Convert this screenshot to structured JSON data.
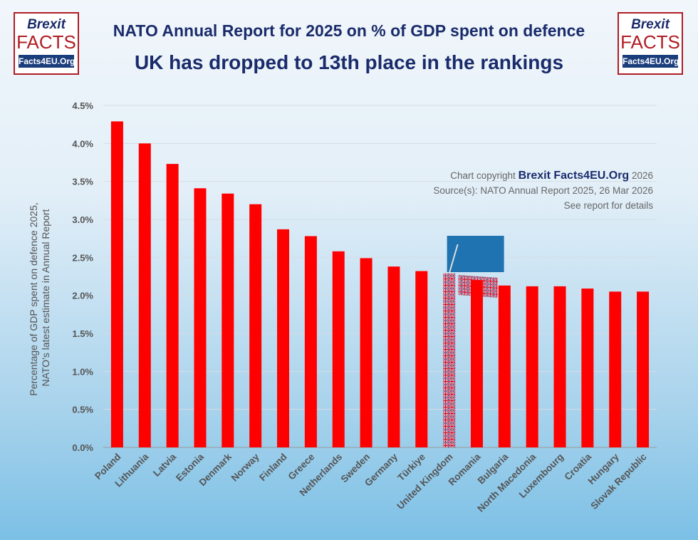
{
  "header": {
    "title": "NATO Annual Report for 2025 on % of GDP spent on defence",
    "subtitle": "UK has dropped to 13th place in the rankings"
  },
  "logo": {
    "line1": "Brexit",
    "line2": "FACTS",
    "line3": "Facts4EU.Org"
  },
  "credit": {
    "prefix": "Chart copyright",
    "brand": "Brexit Facts4EU.Org",
    "year": "2026",
    "source": "Source(s): NATO Annual Report 2025, 26 Mar 2026",
    "note": "See report for details"
  },
  "chart_data": {
    "type": "bar",
    "title": "NATO Annual Report for 2025 on % of GDP spent on defence",
    "ylabel": "Percentage of GDP spent on defence 2025, NATO's latest estimate in Annual Report",
    "ylabel_lines": [
      "Percentage of GDP spent on defence 2025,",
      "NATO's latest estimate in Annual Report"
    ],
    "ylim": [
      0,
      4.5
    ],
    "yticks": [
      "0.0%",
      "0.5%",
      "1.0%",
      "1.5%",
      "2.0%",
      "2.5%",
      "3.0%",
      "3.5%",
      "4.0%",
      "4.5%"
    ],
    "grid": true,
    "categories": [
      "Poland",
      "Lithuania",
      "Latvia",
      "Estonia",
      "Denmark",
      "Norway",
      "Finland",
      "Greece",
      "Netherlands",
      "Sweden",
      "Germany",
      "Türkiye",
      "United Kingdom",
      "Romania",
      "Bulgaria",
      "North Macedonia",
      "Luxembourg",
      "Croatia",
      "Hungary",
      "Slovak Republic"
    ],
    "values": [
      4.29,
      4.0,
      3.73,
      3.41,
      3.34,
      3.2,
      2.87,
      2.78,
      2.58,
      2.49,
      2.38,
      2.32,
      2.29,
      2.2,
      2.13,
      2.12,
      2.12,
      2.09,
      2.05,
      2.05
    ],
    "highlight": "United Kingdom",
    "bar_color": "#ff0000",
    "highlight_style": "union-flag"
  }
}
